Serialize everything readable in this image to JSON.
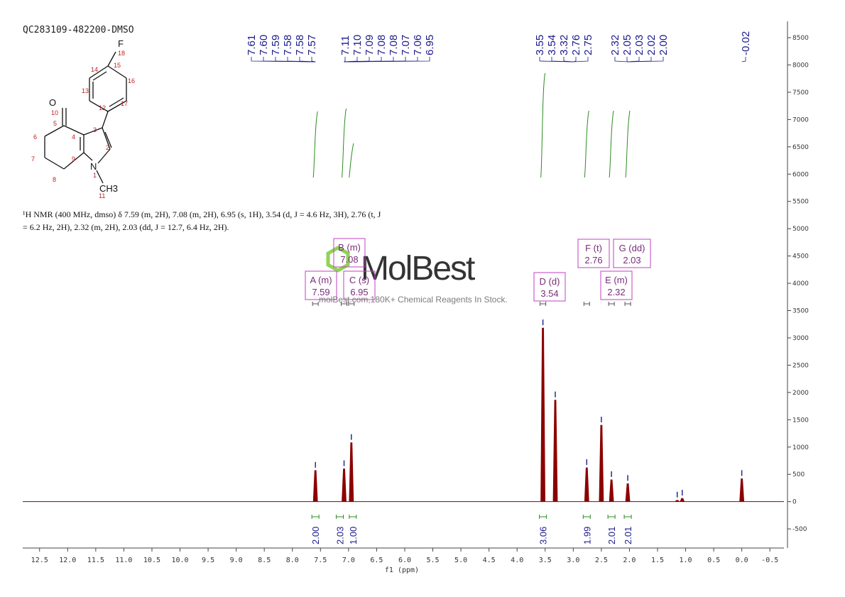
{
  "sample_title": "QC283109-482200-DMSO",
  "nmr_text_line1": "¹H NMR (400 MHz, dmso) δ 7.59 (m, 2H), 7.08 (m, 2H), 6.95 (s, 1H), 3.54 (d, J = 4.6 Hz, 3H), 2.76 (t, J",
  "nmr_text_line2": "= 6.2 Hz, 2H), 2.32 (m, 2H), 2.03 (dd, J = 12.7, 6.4 Hz, 2H).",
  "watermark": {
    "brand": "MolBest",
    "tagline": "molBest.com,180K+ Chemical Reagents In Stock."
  },
  "structure": {
    "atoms": {
      "F": "F",
      "O": "O",
      "N": "N",
      "CH3": "CH3",
      "n18": "18",
      "n15": "15",
      "n14": "14",
      "n16": "16",
      "n13": "13",
      "n12": "12",
      "n17": "17",
      "n10": "10",
      "n5": "5",
      "n3": "3",
      "n4": "4",
      "n6": "6",
      "n2": "2",
      "n9": "9",
      "n7": "7",
      "n8": "8",
      "n1": "1",
      "n11": "11"
    }
  },
  "peak_labels": {
    "group1": [
      "7.61",
      "7.60",
      "7.59",
      "7.58",
      "7.58",
      "7.57"
    ],
    "group2": [
      "7.11",
      "7.10",
      "7.09",
      "7.08",
      "7.08",
      "7.07",
      "7.06",
      "6.95"
    ],
    "group3": [
      "3.55",
      "3.54",
      "3.32",
      "2.76",
      "2.75"
    ],
    "group4": [
      "2.32",
      "2.05",
      "2.03",
      "2.02",
      "2.00"
    ],
    "group5": [
      "-0.02"
    ]
  },
  "multiplets": [
    {
      "letter": "A (m)",
      "shift": "7.59"
    },
    {
      "letter": "B (m)",
      "shift": "7.08"
    },
    {
      "letter": "C (s)",
      "shift": "6.95"
    },
    {
      "letter": "D (d)",
      "shift": "3.54"
    },
    {
      "letter": "E (m)",
      "shift": "2.32"
    },
    {
      "letter": "F (t)",
      "shift": "2.76"
    },
    {
      "letter": "G (dd)",
      "shift": "2.03"
    }
  ],
  "chart_data": {
    "type": "line",
    "xlabel": "f1 (ppm)",
    "ylabel": "",
    "xlim": [
      12.8,
      -0.75
    ],
    "ylim": [
      -850,
      8800
    ],
    "x_reversed": true,
    "x_ticks": [
      "12.5",
      "12.0",
      "11.5",
      "11.0",
      "10.5",
      "10.0",
      "9.5",
      "9.0",
      "8.5",
      "8.0",
      "7.5",
      "7.0",
      "6.5",
      "6.0",
      "5.5",
      "5.0",
      "4.5",
      "4.0",
      "3.5",
      "3.0",
      "2.5",
      "2.0",
      "1.5",
      "1.0",
      "0.5",
      "0.0",
      "-0.5"
    ],
    "y_ticks": [
      "-500",
      "0",
      "500",
      "1000",
      "1500",
      "2000",
      "2500",
      "3000",
      "3500",
      "4000",
      "4500",
      "5000",
      "5500",
      "6000",
      "6500",
      "7000",
      "7500",
      "8000",
      "8500"
    ],
    "series": [
      {
        "peaks": [
          {
            "ppm": 7.59,
            "height": 570
          },
          {
            "ppm": 7.08,
            "height": 600
          },
          {
            "ppm": 6.95,
            "height": 1080
          },
          {
            "ppm": 3.54,
            "height": 3180
          },
          {
            "ppm": 3.32,
            "height": 1860
          },
          {
            "ppm": 2.76,
            "height": 620
          },
          {
            "ppm": 2.5,
            "height": 1400
          },
          {
            "ppm": 2.32,
            "height": 400
          },
          {
            "ppm": 2.03,
            "height": 330
          },
          {
            "ppm": 1.15,
            "height": 25
          },
          {
            "ppm": 1.06,
            "height": 60
          },
          {
            "ppm": 0.0,
            "height": 420
          }
        ]
      }
    ],
    "integrals": [
      {
        "ppm": 7.59,
        "value": "2.00"
      },
      {
        "ppm": 7.08,
        "value": "2.03"
      },
      {
        "ppm": 6.95,
        "value": "1.00"
      },
      {
        "ppm": 3.54,
        "value": "3.06"
      },
      {
        "ppm": 2.76,
        "value": "1.99"
      },
      {
        "ppm": 2.32,
        "value": "2.01"
      },
      {
        "ppm": 2.03,
        "value": "2.01"
      }
    ],
    "colors": {
      "spectrum": "#8b0000",
      "peak_labels": "#1a1a8c",
      "integral_curve": "#2e8b22",
      "integral_value": "#1a1a8c",
      "multiplet_box": "#c040c0",
      "multiplet_text": "#7a2a7a",
      "structure_numbers": "#c02020"
    }
  }
}
